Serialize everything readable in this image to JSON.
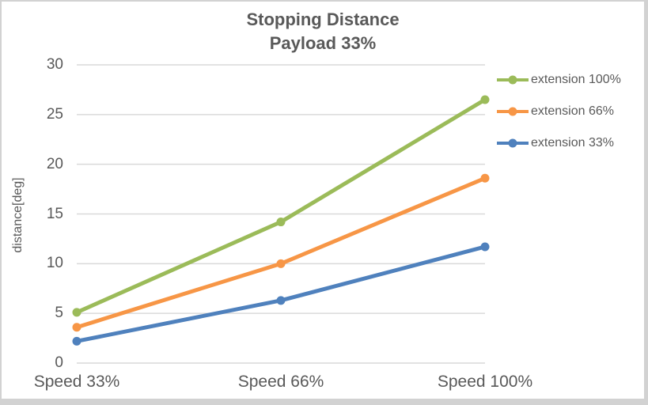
{
  "chart_data": {
    "type": "line",
    "title_lines": [
      "Stopping Distance",
      "Payload 33%"
    ],
    "xlabel": "",
    "ylabel": "distance[deg]",
    "categories": [
      "Speed 33%",
      "Speed 66%",
      "Speed 100%"
    ],
    "series": [
      {
        "name": "extension 100%",
        "color": "#9BBB59",
        "values": [
          5.1,
          14.2,
          26.5
        ]
      },
      {
        "name": "extension 66%",
        "color": "#F79646",
        "values": [
          3.6,
          10.0,
          18.6
        ]
      },
      {
        "name": "extension 33%",
        "color": "#4F81BD",
        "values": [
          2.2,
          6.3,
          11.7
        ]
      }
    ],
    "ylim": [
      0,
      30
    ],
    "yticks": [
      0,
      5,
      10,
      15,
      20,
      25,
      30
    ],
    "grid": true,
    "legend_position": "right"
  },
  "style": {
    "text_color": "#595959",
    "gridline_color": "#D9D9D9",
    "frame_border_color": "#D2D2D2",
    "background_color": "#FFFFFF"
  }
}
